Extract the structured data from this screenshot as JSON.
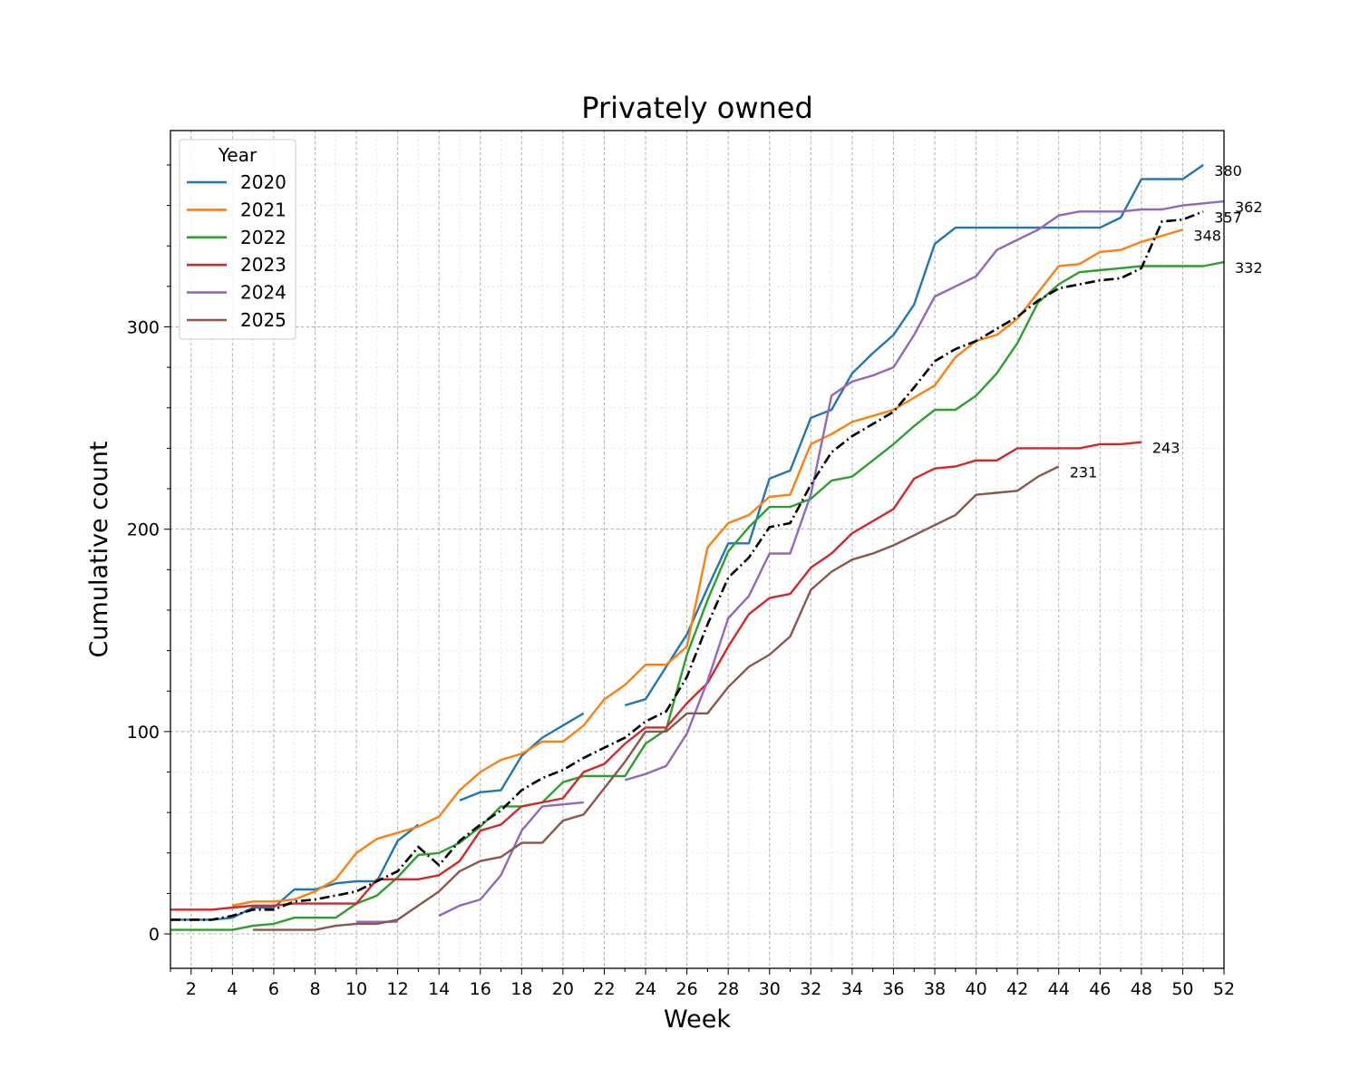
{
  "chart_data": {
    "type": "line",
    "title": "Privately owned",
    "xlabel": "Week",
    "ylabel": "Cumulative count",
    "xlim": [
      1,
      52
    ],
    "ylim": [
      -17,
      397
    ],
    "xticks": [
      2,
      4,
      6,
      8,
      10,
      12,
      14,
      16,
      18,
      20,
      22,
      24,
      26,
      28,
      30,
      32,
      34,
      36,
      38,
      40,
      42,
      44,
      46,
      48,
      50,
      52
    ],
    "yticks": [
      0,
      100,
      200,
      300
    ],
    "grid": true,
    "legend": {
      "title": "Year",
      "placement": "top-left"
    },
    "series": [
      {
        "name": "2020",
        "color": "#1f77b4",
        "points": [
          [
            1,
            7
          ],
          [
            2,
            7
          ],
          [
            3,
            7
          ],
          [
            4,
            8
          ],
          [
            5,
            13
          ],
          [
            6,
            13
          ],
          [
            7,
            22
          ],
          [
            8,
            22
          ],
          [
            9,
            25
          ],
          [
            10,
            26
          ],
          [
            11,
            26
          ],
          [
            12,
            46
          ],
          [
            13,
            54
          ],
          null,
          [
            15,
            66
          ],
          [
            16,
            70
          ],
          [
            17,
            71
          ],
          [
            18,
            88
          ],
          [
            19,
            97
          ],
          [
            20,
            103
          ],
          [
            21,
            109
          ],
          null,
          [
            23,
            113
          ],
          [
            24,
            116
          ],
          [
            25,
            132
          ],
          [
            26,
            148
          ],
          [
            27,
            171
          ],
          [
            28,
            193
          ],
          [
            29,
            193
          ],
          [
            30,
            225
          ],
          [
            31,
            229
          ],
          [
            32,
            255
          ],
          [
            33,
            259
          ],
          [
            34,
            277
          ],
          [
            35,
            287
          ],
          [
            36,
            296
          ],
          [
            37,
            311
          ],
          [
            38,
            341
          ],
          [
            39,
            349
          ],
          [
            40,
            349
          ],
          [
            41,
            349
          ],
          [
            42,
            349
          ],
          [
            43,
            349
          ],
          [
            44,
            349
          ],
          [
            45,
            349
          ],
          [
            46,
            349
          ],
          [
            47,
            354
          ],
          [
            48,
            373
          ],
          [
            49,
            373
          ],
          [
            50,
            373
          ],
          [
            51,
            380
          ]
        ],
        "end_label": "380"
      },
      {
        "name": "2021",
        "color": "#ff7f0e",
        "points": [
          [
            4,
            14
          ],
          [
            5,
            16
          ],
          [
            6,
            16
          ],
          [
            7,
            17
          ],
          [
            8,
            21
          ],
          [
            9,
            27
          ],
          [
            10,
            40
          ],
          [
            11,
            47
          ],
          [
            12,
            50
          ],
          [
            13,
            53
          ],
          [
            14,
            58
          ],
          [
            15,
            71
          ],
          [
            16,
            80
          ],
          [
            17,
            86
          ],
          [
            18,
            89
          ],
          [
            19,
            95
          ],
          [
            20,
            95
          ],
          [
            21,
            103
          ],
          [
            22,
            116
          ],
          [
            23,
            123
          ],
          [
            24,
            133
          ],
          [
            25,
            133
          ],
          [
            26,
            142
          ],
          [
            27,
            191
          ],
          [
            28,
            203
          ],
          [
            29,
            207
          ],
          [
            30,
            216
          ],
          [
            31,
            217
          ],
          [
            32,
            242
          ],
          [
            33,
            247
          ],
          [
            34,
            253
          ],
          [
            35,
            256
          ],
          [
            36,
            259
          ],
          [
            37,
            265
          ],
          [
            38,
            271
          ],
          [
            39,
            285
          ],
          [
            40,
            293
          ],
          [
            41,
            296
          ],
          [
            42,
            304
          ],
          [
            43,
            317
          ],
          [
            44,
            330
          ],
          [
            45,
            331
          ],
          [
            46,
            337
          ],
          [
            47,
            338
          ],
          [
            48,
            342
          ],
          [
            49,
            345
          ],
          [
            50,
            348
          ]
        ],
        "end_label": "348"
      },
      {
        "name": "2022",
        "color": "#2ca02c",
        "points": [
          [
            1,
            2
          ],
          [
            2,
            2
          ],
          [
            3,
            2
          ],
          [
            4,
            2
          ],
          [
            5,
            4
          ],
          [
            6,
            5
          ],
          [
            7,
            8
          ],
          [
            8,
            8
          ],
          [
            9,
            8
          ],
          [
            10,
            15
          ],
          [
            11,
            19
          ],
          [
            12,
            28
          ],
          [
            13,
            39
          ],
          [
            14,
            40
          ],
          [
            15,
            45
          ],
          [
            16,
            53
          ],
          [
            17,
            63
          ],
          [
            18,
            63
          ],
          [
            19,
            65
          ],
          [
            20,
            75
          ],
          [
            21,
            78
          ],
          [
            22,
            78
          ],
          [
            23,
            78
          ],
          [
            24,
            94
          ],
          [
            25,
            101
          ],
          [
            26,
            138
          ],
          [
            27,
            165
          ],
          [
            28,
            189
          ],
          [
            29,
            201
          ],
          [
            30,
            211
          ],
          [
            31,
            211
          ],
          [
            32,
            215
          ],
          [
            33,
            224
          ],
          [
            34,
            226
          ],
          [
            35,
            234
          ],
          [
            36,
            242
          ],
          [
            37,
            251
          ],
          [
            38,
            259
          ],
          [
            39,
            259
          ],
          [
            40,
            266
          ],
          [
            41,
            277
          ],
          [
            42,
            292
          ],
          [
            43,
            312
          ],
          [
            44,
            321
          ],
          [
            45,
            327
          ],
          [
            46,
            328
          ],
          [
            47,
            329
          ],
          [
            48,
            330
          ],
          [
            49,
            330
          ],
          [
            50,
            330
          ],
          [
            51,
            330
          ],
          [
            52,
            332
          ]
        ],
        "end_label": "332"
      },
      {
        "name": "2023",
        "color": "#d62728",
        "points": [
          [
            1,
            12
          ],
          [
            2,
            12
          ],
          [
            3,
            12
          ],
          [
            4,
            13
          ],
          [
            5,
            14
          ],
          [
            6,
            14
          ],
          [
            7,
            15
          ],
          [
            8,
            15
          ],
          [
            9,
            15
          ],
          [
            10,
            15
          ],
          [
            11,
            27
          ],
          [
            12,
            27
          ],
          [
            13,
            27
          ],
          [
            14,
            29
          ],
          [
            15,
            36
          ],
          [
            16,
            51
          ],
          [
            17,
            54
          ],
          [
            18,
            63
          ],
          [
            19,
            65
          ],
          [
            20,
            67
          ],
          [
            21,
            80
          ],
          [
            22,
            84
          ],
          [
            23,
            94
          ],
          [
            24,
            102
          ],
          [
            25,
            102
          ],
          [
            26,
            114
          ],
          [
            27,
            124
          ],
          [
            28,
            142
          ],
          [
            29,
            158
          ],
          [
            30,
            166
          ],
          [
            31,
            168
          ],
          [
            32,
            181
          ],
          [
            33,
            188
          ],
          [
            34,
            198
          ],
          [
            35,
            204
          ],
          [
            36,
            210
          ],
          [
            37,
            225
          ],
          [
            38,
            230
          ],
          [
            39,
            231
          ],
          [
            40,
            234
          ],
          [
            41,
            234
          ],
          [
            42,
            240
          ],
          [
            43,
            240
          ],
          [
            44,
            240
          ],
          [
            45,
            240
          ],
          [
            46,
            242
          ],
          [
            47,
            242
          ],
          [
            48,
            243
          ]
        ],
        "end_label": "243"
      },
      {
        "name": "2024",
        "color": "#9467bd",
        "points": [
          [
            10,
            6
          ],
          [
            11,
            6
          ],
          [
            12,
            6
          ],
          null,
          [
            14,
            9
          ],
          [
            15,
            14
          ],
          [
            16,
            17
          ],
          [
            17,
            29
          ],
          [
            18,
            51
          ],
          [
            19,
            63
          ],
          [
            20,
            64
          ],
          [
            21,
            65
          ],
          null,
          [
            23,
            76
          ],
          [
            24,
            79
          ],
          [
            25,
            83
          ],
          [
            26,
            99
          ],
          [
            27,
            125
          ],
          [
            28,
            156
          ],
          [
            29,
            167
          ],
          [
            30,
            188
          ],
          [
            31,
            188
          ],
          [
            32,
            217
          ],
          [
            33,
            266
          ],
          [
            34,
            273
          ],
          [
            35,
            276
          ],
          [
            36,
            280
          ],
          [
            37,
            296
          ],
          [
            38,
            315
          ],
          [
            39,
            320
          ],
          [
            40,
            325
          ],
          [
            41,
            338
          ],
          [
            42,
            343
          ],
          [
            43,
            348
          ],
          [
            44,
            355
          ],
          [
            45,
            357
          ],
          [
            46,
            357
          ],
          [
            47,
            357
          ],
          [
            48,
            358
          ],
          [
            49,
            358
          ],
          [
            50,
            360
          ],
          [
            51,
            361
          ],
          [
            52,
            362
          ]
        ],
        "end_label": "362"
      },
      {
        "name": "2025",
        "color": "#8c564b",
        "points": [
          [
            5,
            2
          ],
          [
            6,
            2
          ],
          [
            7,
            2
          ],
          [
            8,
            2
          ],
          [
            9,
            4
          ],
          [
            10,
            5
          ],
          [
            11,
            5
          ],
          [
            12,
            7
          ],
          [
            13,
            14
          ],
          [
            14,
            21
          ],
          [
            15,
            31
          ],
          [
            16,
            36
          ],
          [
            17,
            38
          ],
          [
            18,
            45
          ],
          [
            19,
            45
          ],
          [
            20,
            56
          ],
          [
            21,
            59
          ],
          [
            22,
            72
          ],
          [
            23,
            85
          ],
          [
            24,
            100
          ],
          [
            25,
            100
          ],
          [
            26,
            109
          ],
          [
            27,
            109
          ],
          [
            28,
            122
          ],
          [
            29,
            132
          ],
          [
            30,
            138
          ],
          [
            31,
            147
          ],
          [
            32,
            170
          ],
          [
            33,
            179
          ],
          [
            34,
            185
          ],
          [
            35,
            188
          ],
          [
            36,
            192
          ],
          [
            37,
            197
          ],
          [
            38,
            202
          ],
          [
            39,
            207
          ],
          [
            40,
            217
          ],
          [
            41,
            218
          ],
          [
            42,
            219
          ],
          [
            43,
            226
          ],
          [
            44,
            231
          ]
        ],
        "end_label": "231"
      }
    ],
    "reference": {
      "style": "dash-dot",
      "color": "#000000",
      "points": [
        [
          1,
          7
        ],
        [
          2,
          7
        ],
        [
          3,
          7
        ],
        [
          4,
          9
        ],
        [
          5,
          12
        ],
        [
          6,
          12
        ],
        [
          7,
          16
        ],
        [
          8,
          17
        ],
        [
          9,
          19
        ],
        [
          10,
          21
        ],
        [
          11,
          26
        ],
        [
          12,
          31
        ],
        [
          13,
          43
        ],
        [
          14,
          34
        ],
        [
          15,
          46
        ],
        [
          16,
          54
        ],
        [
          17,
          61
        ],
        [
          18,
          71
        ],
        [
          19,
          77
        ],
        [
          20,
          81
        ],
        [
          21,
          87
        ],
        [
          22,
          92
        ],
        [
          23,
          97
        ],
        [
          24,
          105
        ],
        [
          25,
          110
        ],
        [
          26,
          127
        ],
        [
          27,
          153
        ],
        [
          28,
          176
        ],
        [
          29,
          186
        ],
        [
          30,
          201
        ],
        [
          31,
          203
        ],
        [
          32,
          222
        ],
        [
          33,
          238
        ],
        [
          34,
          246
        ],
        [
          35,
          252
        ],
        [
          36,
          258
        ],
        [
          37,
          270
        ],
        [
          38,
          283
        ],
        [
          39,
          289
        ],
        [
          40,
          293
        ],
        [
          41,
          299
        ],
        [
          42,
          305
        ],
        [
          43,
          313
        ],
        [
          44,
          319
        ],
        [
          45,
          321
        ],
        [
          46,
          323
        ],
        [
          47,
          324
        ],
        [
          48,
          329
        ],
        [
          49,
          352
        ],
        [
          50,
          353
        ],
        [
          51,
          357
        ]
      ],
      "end_label": "357"
    }
  }
}
